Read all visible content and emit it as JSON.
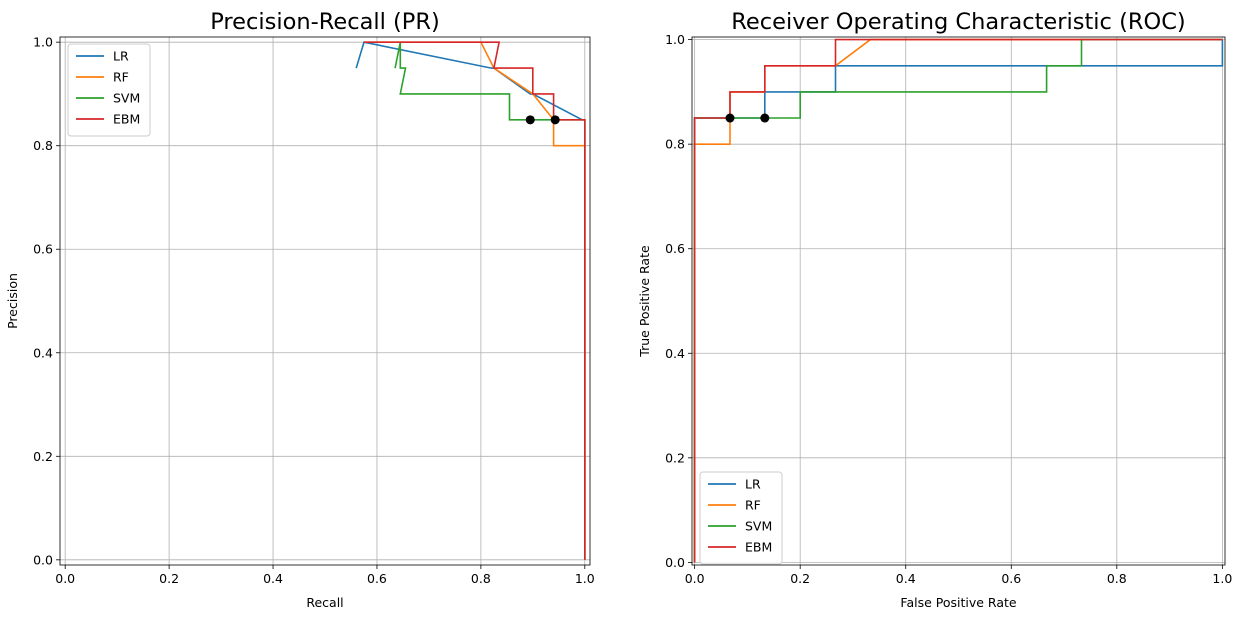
{
  "chart_data": [
    {
      "type": "line",
      "title": "Precision-Recall (PR)",
      "xlabel": "Recall",
      "ylabel": "Precision",
      "xlim": [
        -0.01,
        1.01
      ],
      "ylim": [
        -0.01,
        1.01
      ],
      "xticks": [
        "0.0",
        "0.2",
        "0.4",
        "0.6",
        "0.8",
        "1.0"
      ],
      "yticks": [
        "0.0",
        "0.2",
        "0.4",
        "0.6",
        "0.8",
        "1.0"
      ],
      "grid": true,
      "legend": "upper-left",
      "series": [
        {
          "name": "LR",
          "color": "#1f77b4",
          "x": [
            0.56,
            0.575,
            0.82,
            0.825,
            0.895,
            0.9,
            0.995,
            1.0,
            1.0
          ],
          "y": [
            0.95,
            1.0,
            0.95,
            0.95,
            0.9,
            0.9,
            0.85,
            0.85,
            0.0
          ]
        },
        {
          "name": "RF",
          "color": "#ff7f0e",
          "x": [
            0.575,
            0.8,
            0.825,
            0.9,
            0.94,
            0.94,
            1.0,
            1.0
          ],
          "y": [
            1.0,
            1.0,
            0.95,
            0.9,
            0.85,
            0.8,
            0.8,
            0.0
          ]
        },
        {
          "name": "SVM",
          "color": "#2ca02c",
          "x": [
            0.635,
            0.645,
            0.645,
            0.655,
            0.645,
            0.855,
            0.855,
            0.995,
            1.0,
            1.0
          ],
          "y": [
            0.95,
            1.0,
            0.95,
            0.95,
            0.9,
            0.9,
            0.85,
            0.85,
            0.85,
            0.0
          ]
        },
        {
          "name": "EBM",
          "color": "#d62728",
          "x": [
            0.575,
            0.835,
            0.825,
            0.9,
            0.9,
            0.94,
            0.94,
            1.0,
            1.0
          ],
          "y": [
            1.0,
            1.0,
            0.95,
            0.95,
            0.9,
            0.9,
            0.85,
            0.85,
            0.0
          ]
        }
      ],
      "markers": [
        {
          "x": 0.895,
          "y": 0.85,
          "color": "#000000"
        },
        {
          "x": 0.943,
          "y": 0.85,
          "color": "#000000"
        }
      ]
    },
    {
      "type": "line",
      "title": "Receiver Operating Characteristic (ROC)",
      "xlabel": "False Positive Rate",
      "ylabel": "True Positive Rate",
      "xlim": [
        -0.005,
        1.005
      ],
      "ylim": [
        -0.005,
        1.005
      ],
      "xticks": [
        "0.0",
        "0.2",
        "0.4",
        "0.6",
        "0.8",
        "1.0"
      ],
      "yticks": [
        "0.0",
        "0.2",
        "0.4",
        "0.6",
        "0.8",
        "1.0"
      ],
      "grid": true,
      "legend": "lower-left",
      "series": [
        {
          "name": "LR",
          "color": "#1f77b4",
          "x": [
            0.0,
            0.0,
            0.133,
            0.133,
            0.267,
            0.267,
            1.0,
            1.0
          ],
          "y": [
            0.0,
            0.85,
            0.85,
            0.9,
            0.9,
            0.95,
            0.95,
            1.0
          ]
        },
        {
          "name": "RF",
          "color": "#ff7f0e",
          "x": [
            0.0,
            0.0,
            0.067,
            0.067,
            0.133,
            0.133,
            0.267,
            0.333,
            1.0
          ],
          "y": [
            0.0,
            0.8,
            0.8,
            0.9,
            0.9,
            0.95,
            0.95,
            1.0,
            1.0
          ]
        },
        {
          "name": "SVM",
          "color": "#2ca02c",
          "x": [
            0.0,
            0.0,
            0.2,
            0.2,
            0.667,
            0.667,
            0.733,
            0.733,
            1.0
          ],
          "y": [
            0.0,
            0.85,
            0.85,
            0.9,
            0.9,
            0.95,
            0.95,
            1.0,
            1.0
          ]
        },
        {
          "name": "EBM",
          "color": "#d62728",
          "x": [
            0.0,
            0.0,
            0.067,
            0.067,
            0.133,
            0.133,
            0.267,
            0.267,
            1.0
          ],
          "y": [
            0.0,
            0.85,
            0.85,
            0.9,
            0.9,
            0.95,
            0.95,
            1.0,
            1.0
          ]
        }
      ],
      "markers": [
        {
          "x": 0.067,
          "y": 0.85,
          "color": "#000000"
        },
        {
          "x": 0.133,
          "y": 0.85,
          "color": "#000000"
        }
      ]
    }
  ]
}
